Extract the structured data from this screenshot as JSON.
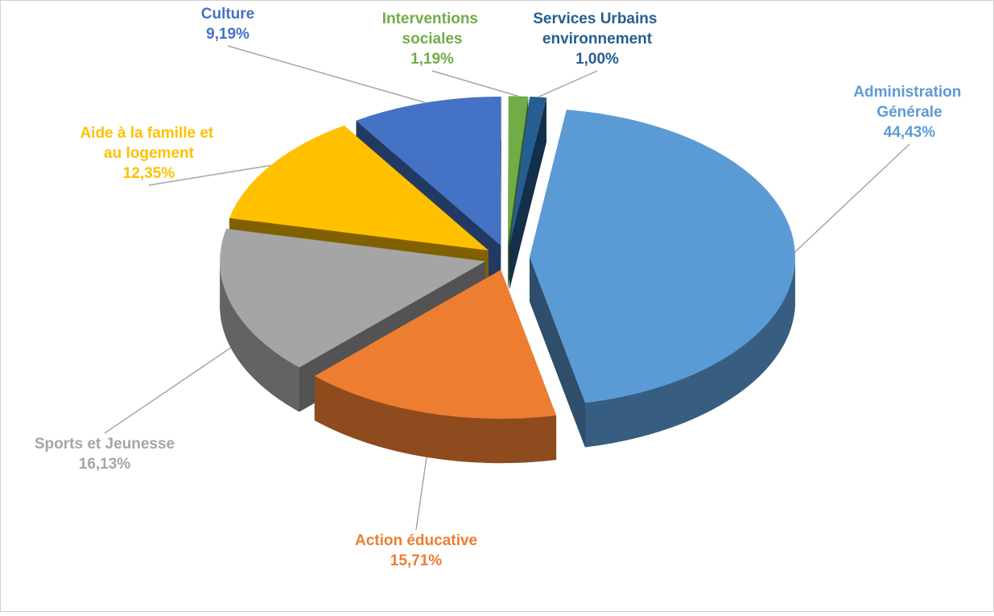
{
  "chart_data": {
    "type": "pie",
    "categories": [
      "Administration Générale",
      "Action éducative",
      "Sports et Jeunesse",
      "Aide à la famille et au logement",
      "Culture",
      "Interventions sociales",
      "Services Urbains environnement"
    ],
    "values": [
      44.43,
      15.71,
      16.13,
      12.35,
      9.19,
      1.19,
      1.0
    ],
    "value_labels": [
      "44,43%",
      "15,71%",
      "16,13%",
      "12,35%",
      "9,19%",
      "1,19%",
      "1,00%"
    ],
    "colors": [
      "#5b9bd5",
      "#ed7d31",
      "#a5a5a5",
      "#ffc000",
      "#4472c4",
      "#70ad47",
      "#255e91"
    ]
  }
}
